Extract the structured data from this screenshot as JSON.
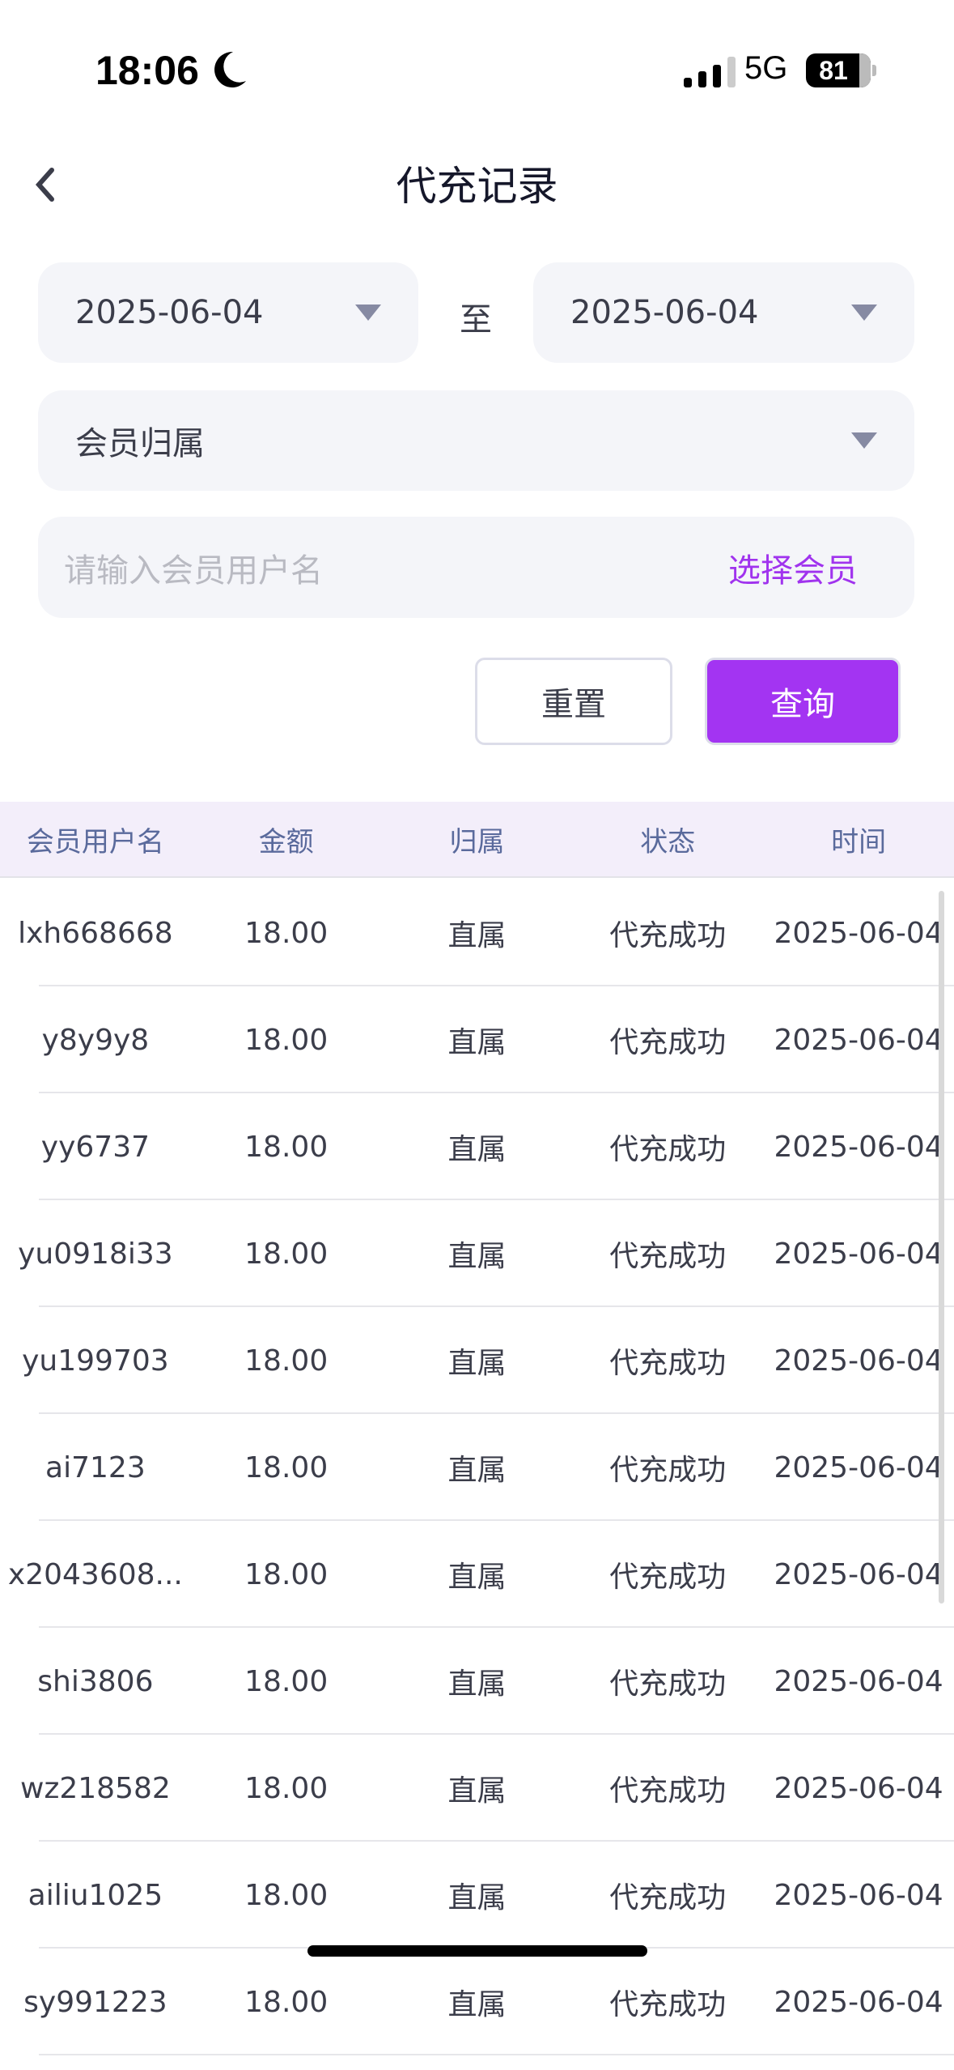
{
  "status_bar": {
    "time": "18:06",
    "network": "5G",
    "battery": "81",
    "icons": [
      "moon-icon",
      "signal-icon",
      "battery-icon"
    ]
  },
  "nav": {
    "title": "代充记录",
    "back_icon": "chevron-left-icon"
  },
  "filters": {
    "start_date": "2025-06-04",
    "to_label": "至",
    "end_date": "2025-06-04",
    "belong_select": "会员归属",
    "member_placeholder": "请输入会员用户名",
    "member_value": "",
    "select_member": "选择会员",
    "reset": "重置",
    "query": "查询"
  },
  "colors": {
    "accent": "#a334f2",
    "header_bg": "#f3eefa",
    "field_bg": "#f4f5f9"
  },
  "table": {
    "headers": [
      "会员用户名",
      "金额",
      "归属",
      "状态",
      "时间"
    ],
    "rows": [
      [
        "lxh668668",
        "18.00",
        "直属",
        "代充成功",
        "2025-06-04"
      ],
      [
        "y8y9y8",
        "18.00",
        "直属",
        "代充成功",
        "2025-06-04"
      ],
      [
        "yy6737",
        "18.00",
        "直属",
        "代充成功",
        "2025-06-04"
      ],
      [
        "yu0918i33",
        "18.00",
        "直属",
        "代充成功",
        "2025-06-04"
      ],
      [
        "yu199703",
        "18.00",
        "直属",
        "代充成功",
        "2025-06-04"
      ],
      [
        "ai7123",
        "18.00",
        "直属",
        "代充成功",
        "2025-06-04"
      ],
      [
        "x2043608...",
        "18.00",
        "直属",
        "代充成功",
        "2025-06-04"
      ],
      [
        "shi3806",
        "18.00",
        "直属",
        "代充成功",
        "2025-06-04"
      ],
      [
        "wz218582",
        "18.00",
        "直属",
        "代充成功",
        "2025-06-04"
      ],
      [
        "ailiu1025",
        "18.00",
        "直属",
        "代充成功",
        "2025-06-04"
      ],
      [
        "sy991223",
        "18.00",
        "直属",
        "代充成功",
        "2025-06-04"
      ]
    ]
  }
}
